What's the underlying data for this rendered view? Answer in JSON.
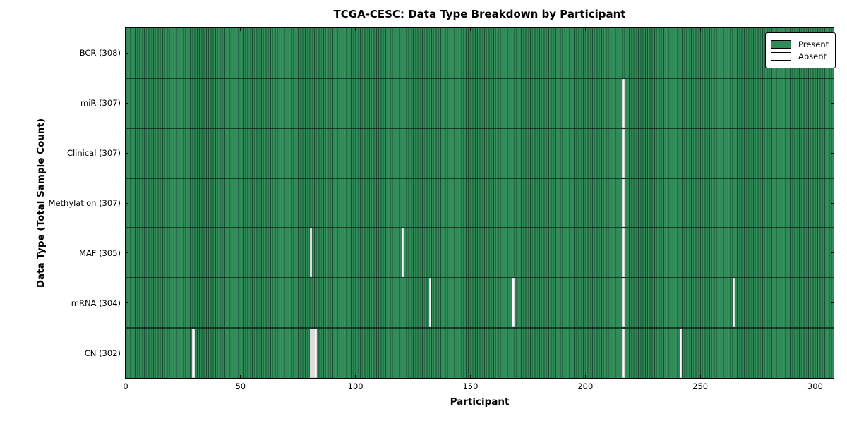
{
  "figure": {
    "title": "TCGA-CESC: Data Type Breakdown by Participant",
    "xlabel": "Participant",
    "ylabel": "Data Type (Total Sample Count)"
  },
  "legend": {
    "present_label": "Present",
    "absent_label": "Absent"
  },
  "colors": {
    "present": "#2e8b57",
    "absent": "#ffffff",
    "bar_edge": "#000000"
  },
  "chart_data": {
    "type": "heatmap",
    "title": "TCGA-CESC: Data Type Breakdown by Participant",
    "xlabel": "Participant",
    "ylabel": "Data Type (Total Sample Count)",
    "xlim": [
      0,
      308
    ],
    "x_ticks": [
      0,
      50,
      100,
      150,
      200,
      250,
      300
    ],
    "total_participants": 308,
    "legend_entries": [
      {
        "label": "Present",
        "color": "#2e8b57"
      },
      {
        "label": "Absent",
        "color": "#ffffff"
      }
    ],
    "legend_position": "upper right",
    "grid": false,
    "rows": [
      {
        "label": "BCR (308)",
        "data_type": "BCR",
        "present_count": 308,
        "absent_participants": []
      },
      {
        "label": "miR (307)",
        "data_type": "miR",
        "present_count": 307,
        "absent_participants": [
          216
        ]
      },
      {
        "label": "Clinical (307)",
        "data_type": "Clinical",
        "present_count": 307,
        "absent_participants": [
          216
        ]
      },
      {
        "label": "Methylation (307)",
        "data_type": "Methylation",
        "present_count": 307,
        "absent_participants": [
          216
        ]
      },
      {
        "label": "MAF (305)",
        "data_type": "MAF",
        "present_count": 305,
        "absent_participants": [
          80,
          120,
          216
        ]
      },
      {
        "label": "mRNA (304)",
        "data_type": "mRNA",
        "present_count": 304,
        "absent_participants": [
          132,
          168,
          216,
          264
        ]
      },
      {
        "label": "CN (302)",
        "data_type": "CN",
        "present_count": 302,
        "absent_participants": [
          29,
          80,
          81,
          82,
          216,
          241
        ]
      }
    ]
  }
}
